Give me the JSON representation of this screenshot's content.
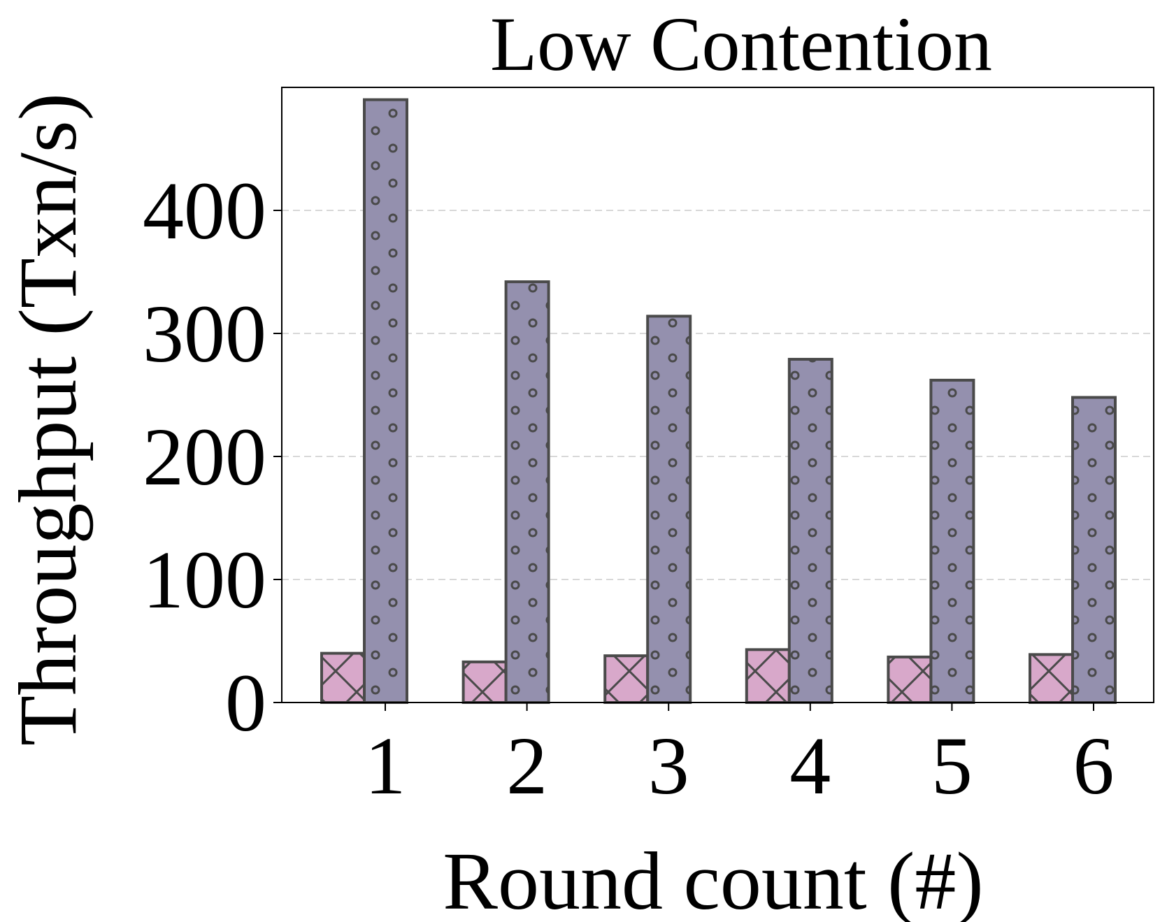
{
  "chart_data": {
    "type": "bar",
    "title": "Low Contention",
    "xlabel": "Round count (#)",
    "ylabel": "Throughput (Txn/s)",
    "categories": [
      "1",
      "2",
      "3",
      "4",
      "5",
      "6"
    ],
    "yticks": [
      "0",
      "100",
      "200",
      "300",
      "400"
    ],
    "ylim": [
      0,
      500
    ],
    "grid": "y-dashed",
    "series": [
      {
        "values": [
          40,
          33,
          38,
          43,
          37,
          39
        ],
        "color": "#d8a8ca",
        "hatch": "x"
      },
      {
        "values": [
          490,
          342,
          314,
          279,
          262,
          248
        ],
        "color": "#9490ae",
        "hatch": "o"
      }
    ]
  }
}
